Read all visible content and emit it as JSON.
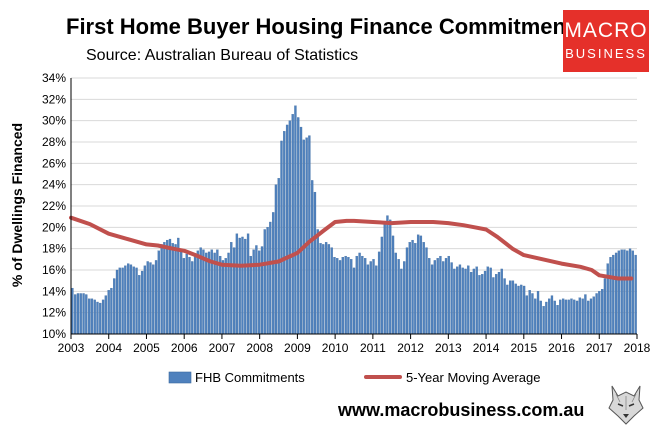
{
  "chart_data": {
    "type": "bar",
    "title": "First Home Buyer Housing Finance Commitments",
    "subtitle": "Source: Australian Bureau of Statistics",
    "ylabel": "% of Dwellings Financed",
    "xlabel": "",
    "ylim": [
      10,
      34
    ],
    "yticks": [
      "10%",
      "12%",
      "14%",
      "16%",
      "18%",
      "20%",
      "22%",
      "24%",
      "26%",
      "28%",
      "30%",
      "32%",
      "34%"
    ],
    "xticks": [
      "2003",
      "2004",
      "2005",
      "2006",
      "2007",
      "2008",
      "2009",
      "2010",
      "2011",
      "2012",
      "2013",
      "2014",
      "2015",
      "2016",
      "2017",
      "2018"
    ],
    "x_start_year": 2003,
    "grid": true,
    "legend_position": "bottom",
    "series": [
      {
        "name": "FHB Commitments",
        "kind": "bar",
        "color": "#4f81bd",
        "values": [
          14.3,
          13.7,
          13.8,
          13.8,
          13.8,
          13.7,
          13.3,
          13.3,
          13.2,
          13.0,
          12.9,
          13.2,
          13.6,
          14.1,
          14.3,
          15.2,
          16.0,
          16.2,
          16.2,
          16.4,
          16.6,
          16.5,
          16.3,
          16.2,
          15.5,
          15.9,
          16.4,
          16.8,
          16.7,
          16.5,
          16.9,
          17.8,
          18.4,
          18.6,
          18.8,
          18.9,
          18.5,
          18.4,
          19.0,
          17.8,
          17.1,
          17.5,
          17.2,
          16.8,
          17.3,
          17.8,
          18.1,
          17.9,
          17.6,
          17.7,
          17.9,
          17.6,
          17.9,
          17.3,
          16.9,
          17.1,
          17.6,
          18.6,
          18.1,
          19.4,
          19.0,
          19.1,
          18.9,
          19.4,
          17.3,
          17.9,
          18.3,
          17.8,
          18.2,
          19.8,
          20.0,
          20.5,
          21.4,
          24.0,
          24.6,
          28.1,
          29.0,
          29.6,
          30.0,
          30.6,
          31.4,
          30.3,
          29.4,
          28.2,
          28.4,
          28.6,
          24.4,
          23.3,
          19.8,
          18.5,
          18.4,
          18.6,
          18.4,
          18.1,
          17.2,
          17.1,
          16.9,
          17.2,
          17.3,
          17.2,
          17.0,
          16.2,
          17.3,
          17.6,
          17.3,
          17.1,
          16.5,
          16.8,
          17.0,
          16.4,
          17.7,
          19.1,
          20.5,
          21.1,
          20.7,
          19.2,
          17.6,
          17.0,
          16.1,
          16.8,
          18.1,
          18.6,
          18.8,
          18.5,
          19.3,
          19.2,
          18.6,
          18.1,
          17.1,
          16.5,
          16.9,
          17.1,
          17.3,
          16.8,
          17.1,
          17.3,
          16.7,
          16.1,
          16.3,
          16.5,
          16.2,
          16.1,
          16.4,
          15.8,
          16.1,
          16.3,
          15.5,
          15.6,
          15.9,
          16.3,
          16.2,
          15.3,
          15.6,
          15.8,
          16.1,
          15.2,
          14.6,
          15.0,
          15.0,
          14.7,
          14.5,
          14.6,
          14.5,
          13.6,
          14.1,
          13.8,
          13.3,
          14.0,
          13.1,
          12.6,
          13.0,
          13.3,
          13.6,
          13.1,
          12.7,
          13.2,
          13.3,
          13.2,
          13.2,
          13.3,
          13.2,
          13.1,
          13.4,
          13.3,
          13.7,
          13.1,
          13.3,
          13.5,
          13.8,
          14.0,
          14.2,
          15.2,
          16.6,
          17.2,
          17.4,
          17.6,
          17.8,
          17.9,
          17.9,
          17.8,
          18.0,
          17.8,
          17.4
        ]
      },
      {
        "name": "5-Year Moving Average",
        "kind": "line",
        "color": "#c0504d",
        "x": [
          2003.0,
          2003.5,
          2004.0,
          2004.5,
          2005.0,
          2005.3,
          2005.7,
          2006.0,
          2006.3,
          2006.7,
          2007.0,
          2007.5,
          2008.0,
          2008.5,
          2009.0,
          2009.3,
          2009.7,
          2010.0,
          2010.3,
          2010.5,
          2011.0,
          2011.5,
          2012.0,
          2012.3,
          2012.6,
          2013.0,
          2013.4,
          2013.7,
          2014.0,
          2014.3,
          2014.7,
          2015.0,
          2015.5,
          2016.0,
          2016.5,
          2016.8,
          2017.0,
          2017.5,
          2017.85
        ],
        "y": [
          20.9,
          20.3,
          19.4,
          18.9,
          18.4,
          18.3,
          18.0,
          17.8,
          17.4,
          16.8,
          16.5,
          16.4,
          16.5,
          16.8,
          17.6,
          18.6,
          19.7,
          20.5,
          20.6,
          20.6,
          20.5,
          20.4,
          20.5,
          20.5,
          20.5,
          20.4,
          20.2,
          20.0,
          19.8,
          19.1,
          18.0,
          17.4,
          17.0,
          16.6,
          16.3,
          16.0,
          15.5,
          15.2,
          15.2
        ]
      }
    ]
  },
  "logo": {
    "line1": "MACRO",
    "line2": "BUSINESS"
  },
  "footer": {
    "url": "www.macrobusiness.com.au"
  }
}
